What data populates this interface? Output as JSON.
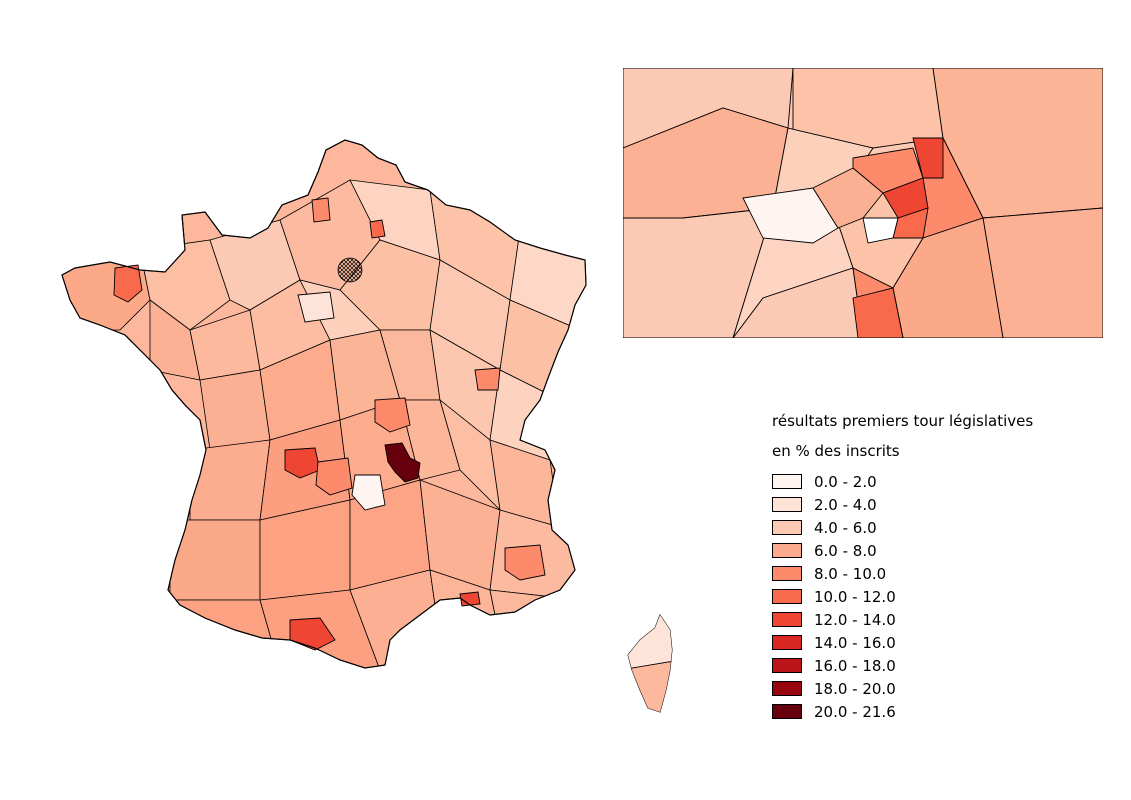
{
  "legend": {
    "title": "résultats premiers tour législatives",
    "subtitle": "en % des inscrits",
    "classes": [
      {
        "label": "0.0 - 2.0",
        "color": "#fff5f0"
      },
      {
        "label": "2.0 - 4.0",
        "color": "#fee4d8"
      },
      {
        "label": "4.0 - 6.0",
        "color": "#fcc9b4"
      },
      {
        "label": "6.0 - 8.0",
        "color": "#fcaa8e"
      },
      {
        "label": "8.0 - 10.0",
        "color": "#fc8a6b"
      },
      {
        "label": "10.0 - 12.0",
        "color": "#f9694c"
      },
      {
        "label": "12.0 - 14.0",
        "color": "#ef4533"
      },
      {
        "label": "14.0 - 16.0",
        "color": "#d92723"
      },
      {
        "label": "16.0 - 18.0",
        "color": "#bb1419"
      },
      {
        "label": "18.0 - 20.0",
        "color": "#97060f"
      },
      {
        "label": "20.0 - 21.6",
        "color": "#67000d"
      }
    ]
  }
}
